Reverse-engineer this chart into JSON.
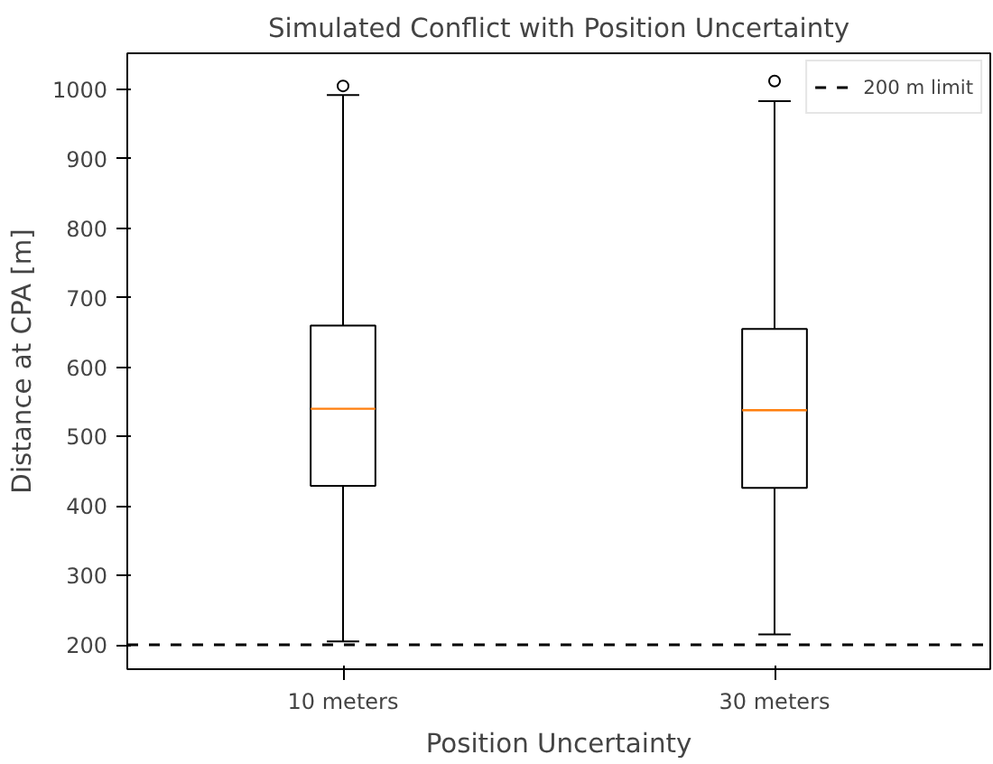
{
  "chart_data": {
    "type": "box",
    "title": "Simulated Conflict with Position Uncertainty",
    "xlabel": "Position Uncertainty",
    "ylabel": "Distance at CPA [m]",
    "categories": [
      "10 meters",
      "30 meters"
    ],
    "boxes": [
      {
        "low": 205,
        "q1": 429,
        "median": 540,
        "q3": 660,
        "high": 992,
        "outliers": [
          1005
        ]
      },
      {
        "low": 215,
        "q1": 426,
        "median": 538,
        "q3": 655,
        "high": 983,
        "outliers": [
          1012
        ]
      }
    ],
    "ylim": [
      165,
      1052
    ],
    "yticks": [
      200,
      300,
      400,
      500,
      600,
      700,
      800,
      900,
      1000
    ],
    "ref_lines": [
      {
        "axis": "y",
        "value": 200,
        "label": "200 m limit",
        "color": "#000000",
        "line_style": "dashed"
      }
    ],
    "legend": "top right",
    "grid": false
  }
}
